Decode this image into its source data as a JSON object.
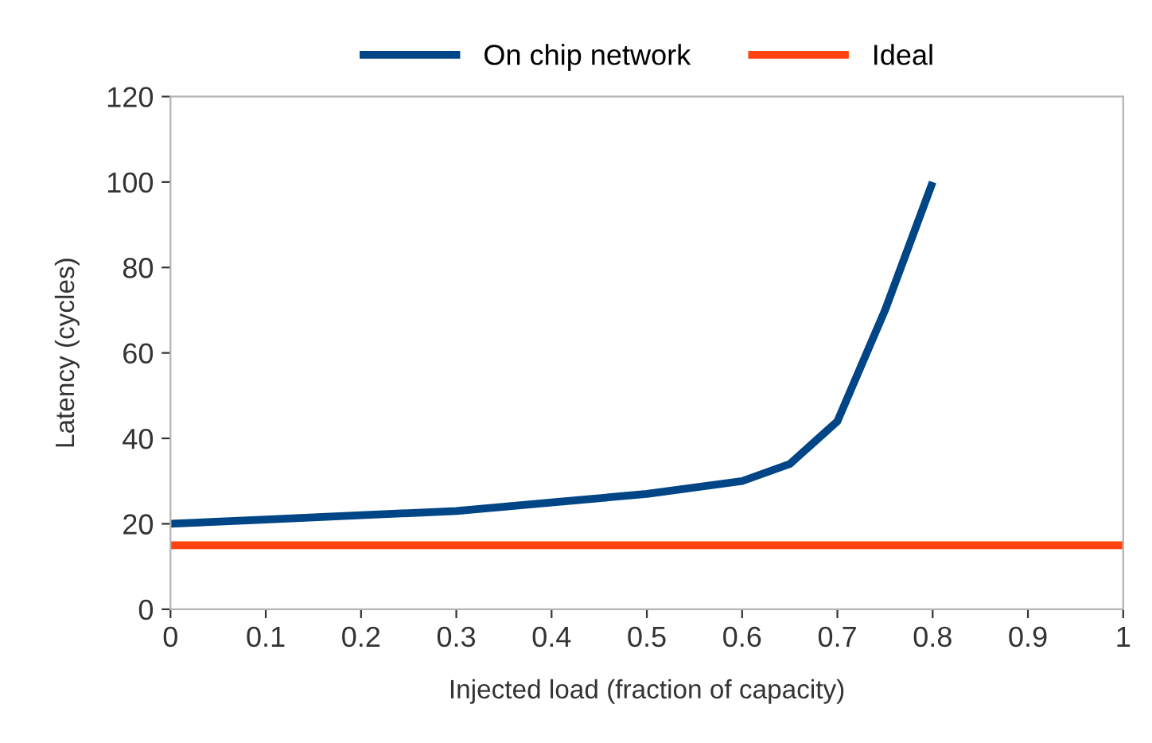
{
  "chart_data": {
    "type": "line",
    "xlabel": "Injected load (fraction of capacity)",
    "ylabel": "Latency (cycles)",
    "series": [
      {
        "name": "On chip network",
        "color": "#004586",
        "x": [
          0,
          0.1,
          0.2,
          0.3,
          0.4,
          0.5,
          0.6,
          0.65,
          0.7,
          0.75,
          0.8
        ],
        "values": [
          20,
          21,
          22,
          23,
          25,
          27,
          30,
          34,
          44,
          70,
          100
        ]
      },
      {
        "name": "Ideal",
        "color": "#ff420e",
        "x": [
          0,
          1
        ],
        "values": [
          15,
          15
        ]
      }
    ],
    "xlim": [
      0,
      1
    ],
    "xticks": [
      0,
      0.1,
      0.2,
      0.3,
      0.4,
      0.5,
      0.6,
      0.7,
      0.8,
      0.9,
      1
    ],
    "ylim": [
      0,
      120
    ],
    "yticks": [
      0,
      20,
      40,
      60,
      80,
      100,
      120
    ],
    "grid": false,
    "legend": "top",
    "marker": "none",
    "line_style": "solid"
  }
}
